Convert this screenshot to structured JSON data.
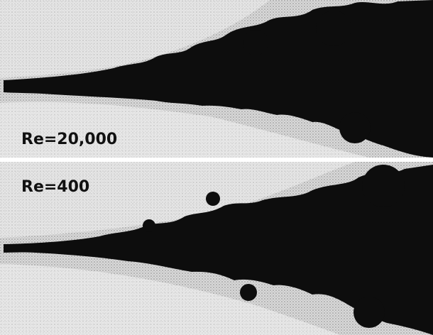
{
  "panels": [
    {
      "label": "Re=20,000"
    },
    {
      "label": "Re=400"
    }
  ]
}
